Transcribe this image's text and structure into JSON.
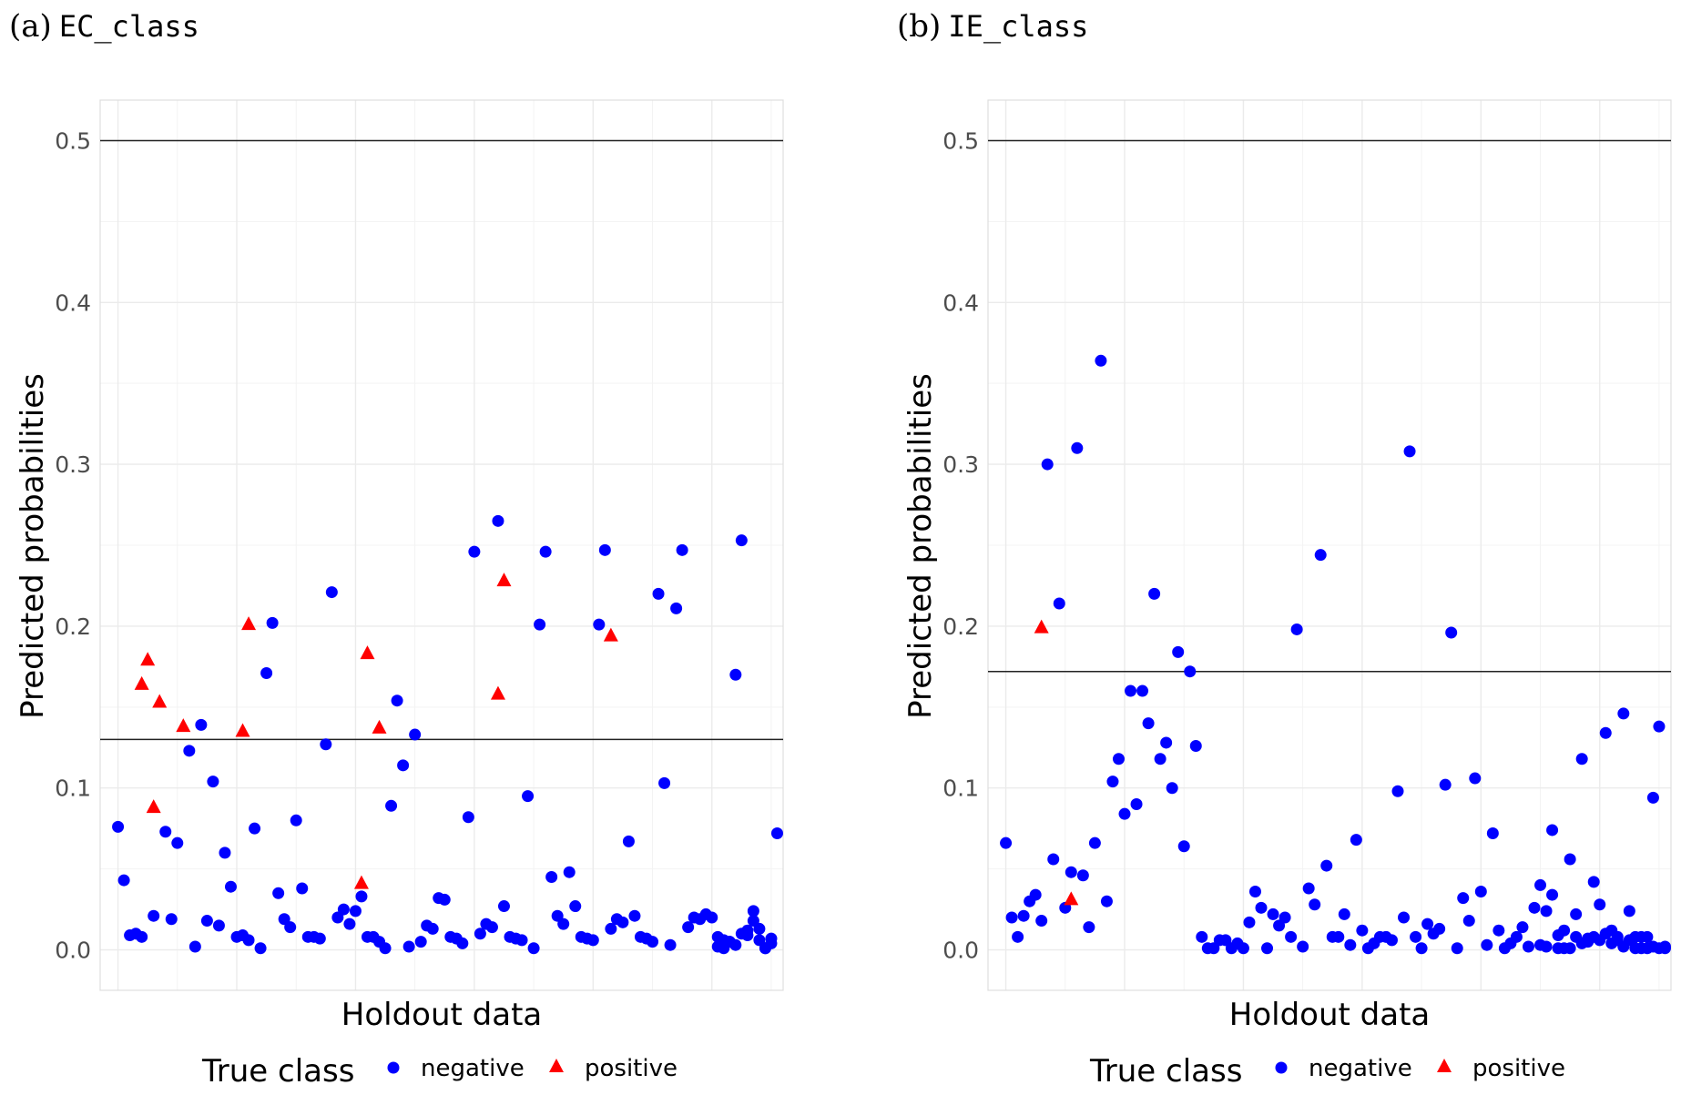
{
  "colors": {
    "negative": "#0000ff",
    "positive": "#ff0000"
  },
  "chart_data": [
    {
      "type": "scatter",
      "panel_label": "(a)",
      "title": "EC_class",
      "xlabel": "Holdout data",
      "ylabel": "Predicted probabilities",
      "ylim": [
        -0.025,
        0.525
      ],
      "yticks": [
        "0.0",
        "0.1",
        "0.2",
        "0.3",
        "0.4",
        "0.5"
      ],
      "ytick_values": [
        0.0,
        0.1,
        0.2,
        0.3,
        0.4,
        0.5
      ],
      "xlim": [
        -3,
        112
      ],
      "hlines": [
        0.5,
        0.13
      ],
      "legend": {
        "title": "True class",
        "entries": [
          "negative",
          "positive"
        ],
        "position": "bottom"
      },
      "series": [
        {
          "name": "negative",
          "marker": "circle",
          "x": [
            0,
            1,
            2,
            3,
            4,
            6,
            8,
            9,
            10,
            12,
            13,
            14,
            15,
            16,
            17,
            18,
            19,
            20,
            21,
            22,
            23,
            24,
            25,
            26,
            27,
            28,
            29,
            30,
            31,
            32,
            33,
            34,
            35,
            36,
            37,
            38,
            39,
            40,
            41,
            42,
            43,
            44,
            45,
            46,
            47,
            48,
            49,
            50,
            51,
            52,
            53,
            54,
            55,
            56,
            57,
            58,
            59,
            60,
            61,
            62,
            63,
            64,
            65,
            66,
            67,
            68,
            69,
            70,
            71,
            72,
            73,
            74,
            75,
            76,
            77,
            78,
            79,
            80,
            81,
            82,
            83,
            84,
            85,
            86,
            87,
            88,
            89,
            90,
            91,
            92,
            93,
            94,
            95,
            96,
            97,
            98,
            99,
            100,
            101,
            102,
            103,
            104,
            105,
            106,
            107,
            108,
            109,
            110
          ],
          "y": [
            0.076,
            0.043,
            0.009,
            0.01,
            0.008,
            0.021,
            0.073,
            0.019,
            0.066,
            0.123,
            0.002,
            0.139,
            0.018,
            0.104,
            0.015,
            0.06,
            0.039,
            0.008,
            0.009,
            0.006,
            0.075,
            0.001,
            0.171,
            0.202,
            0.035,
            0.019,
            0.014,
            0.08,
            0.038,
            0.008,
            0.008,
            0.007,
            0.127,
            0.221,
            0.02,
            0.025,
            0.016,
            0.024,
            0.033,
            0.008,
            0.008,
            0.005,
            0.001,
            0.089,
            0.154,
            0.114,
            0.002,
            0.133,
            0.005,
            0.015,
            0.013,
            0.032,
            0.031,
            0.008,
            0.007,
            0.004,
            0.082,
            0.246,
            0.01,
            0.016,
            0.014,
            0.265,
            0.027,
            0.008,
            0.007,
            0.006,
            0.095,
            0.001,
            0.201,
            0.246,
            0.045,
            0.021,
            0.016,
            0.048,
            0.027,
            0.008,
            0.007,
            0.006,
            0.201,
            0.247,
            0.013,
            0.019,
            0.017,
            0.067,
            0.021,
            0.008,
            0.007,
            0.005,
            0.22,
            0.103,
            0.003,
            0.211,
            0.247,
            0.014,
            0.02,
            0.019,
            0.022,
            0.02,
            0.008,
            0.006,
            0.005,
            0.17,
            0.253,
            0.009,
            0.018,
            0.013,
            0.001,
            0.004
          ],
          "x_extra": [
            101,
            102,
            103,
            104,
            105,
            106,
            107,
            108,
            109,
            110,
            111
          ],
          "y_extra": [
            0.002,
            0.001,
            0.005,
            0.003,
            0.01,
            0.012,
            0.024,
            0.006,
            0.001,
            0.007,
            0.072
          ]
        },
        {
          "name": "positive",
          "marker": "triangle",
          "x": [
            4,
            5,
            6,
            7,
            11,
            21,
            22,
            41,
            42,
            64,
            65,
            83
          ],
          "y": [
            0.164,
            0.179,
            0.088,
            0.153,
            0.138,
            0.135,
            0.201,
            0.041,
            0.183,
            0.158,
            0.228,
            0.194
          ]
        }
      ],
      "extra_positive": {
        "x": [
          44
        ],
        "y": [
          0.137
        ]
      }
    },
    {
      "type": "scatter",
      "panel_label": "(b)",
      "title": "IE_class",
      "xlabel": "Holdout data",
      "ylabel": "Predicted probabilities",
      "ylim": [
        -0.025,
        0.525
      ],
      "yticks": [
        "0.0",
        "0.1",
        "0.2",
        "0.3",
        "0.4",
        "0.5"
      ],
      "ytick_values": [
        0.0,
        0.1,
        0.2,
        0.3,
        0.4,
        0.5
      ],
      "xlim": [
        -3,
        112
      ],
      "hlines": [
        0.5,
        0.172
      ],
      "legend": {
        "title": "True class",
        "entries": [
          "negative",
          "positive"
        ],
        "position": "bottom"
      },
      "series": [
        {
          "name": "negative",
          "marker": "circle",
          "x": [
            0,
            1,
            2,
            3,
            4,
            5,
            6,
            7,
            8,
            9,
            10,
            11,
            12,
            13,
            14,
            15,
            16,
            17,
            18,
            19,
            20,
            21,
            22,
            23,
            24,
            25,
            26,
            27,
            28,
            29,
            30,
            31,
            32,
            33,
            34,
            35,
            36,
            37,
            38,
            39,
            40,
            41,
            42,
            43,
            44,
            45,
            46,
            47,
            48,
            49,
            50,
            51,
            52,
            53,
            54,
            55,
            56,
            57,
            58,
            59,
            60,
            61,
            62,
            63,
            64,
            65,
            66,
            67,
            68,
            69,
            70,
            71,
            72,
            73,
            74,
            75,
            76,
            77,
            78,
            79,
            80,
            81,
            82,
            83,
            84,
            85,
            86,
            87,
            88,
            89,
            90,
            91,
            92,
            93,
            94,
            95,
            96,
            97,
            98,
            99,
            100,
            101,
            102,
            103,
            104,
            105,
            106,
            107,
            108,
            109,
            110,
            111
          ],
          "y": [
            0.066,
            0.02,
            0.008,
            0.021,
            0.03,
            0.034,
            0.018,
            0.3,
            0.056,
            0.214,
            0.026,
            0.048,
            0.31,
            0.046,
            0.014,
            0.066,
            0.364,
            0.03,
            0.104,
            0.118,
            0.084,
            0.16,
            0.09,
            0.16,
            0.14,
            0.22,
            0.118,
            0.128,
            0.1,
            0.184,
            0.064,
            0.172,
            0.126,
            0.008,
            0.001,
            0.001,
            0.006,
            0.006,
            0.001,
            0.004,
            0.001,
            0.017,
            0.036,
            0.026,
            0.001,
            0.022,
            0.015,
            0.02,
            0.008,
            0.198,
            0.002,
            0.038,
            0.028,
            0.244,
            0.052,
            0.008,
            0.008,
            0.022,
            0.003,
            0.068,
            0.012,
            0.001,
            0.004,
            0.008,
            0.008,
            0.006,
            0.098,
            0.02,
            0.308,
            0.008,
            0.001,
            0.016,
            0.01,
            0.013,
            0.102,
            0.196,
            0.001,
            0.032,
            0.018,
            0.106,
            0.036,
            0.003,
            0.072,
            0.012,
            0.001,
            0.004,
            0.008,
            0.014,
            0.002,
            0.026,
            0.04,
            0.024,
            0.074,
            0.001,
            0.012,
            0.056,
            0.008,
            0.004,
            0.007,
            0.042,
            0.028,
            0.01,
            0.012,
            0.006,
            0.146,
            0.024,
            0.001,
            0.001,
            0.008,
            0.094,
            0.001,
            0.002
          ],
          "x_extra": [
            90,
            91,
            92,
            93,
            94,
            95,
            96,
            97,
            98,
            99,
            100,
            101,
            102,
            103,
            104,
            105,
            106,
            107,
            108,
            109,
            110,
            111
          ],
          "y_extra": [
            0.003,
            0.002,
            0.034,
            0.009,
            0.001,
            0.001,
            0.022,
            0.118,
            0.005,
            0.008,
            0.006,
            0.134,
            0.004,
            0.008,
            0.002,
            0.006,
            0.008,
            0.008,
            0.001,
            0.002,
            0.138,
            0.001
          ]
        },
        {
          "name": "positive",
          "marker": "triangle",
          "x": [
            6,
            11
          ],
          "y": [
            0.199,
            0.031
          ]
        }
      ]
    }
  ]
}
